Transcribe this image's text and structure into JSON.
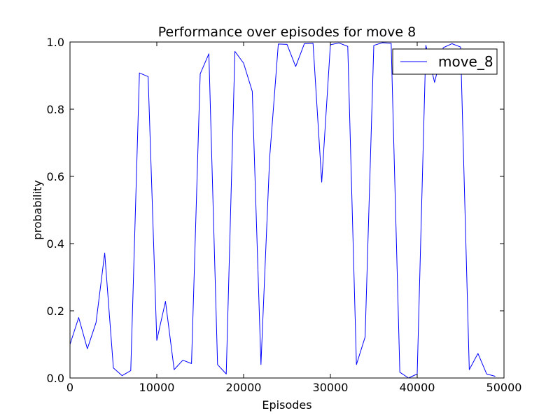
{
  "chart_data": {
    "type": "line",
    "title": "Performance over episodes for move 8",
    "xlabel": "Episodes",
    "ylabel": "probability",
    "xlim": [
      0,
      50000
    ],
    "ylim": [
      0.0,
      1.0
    ],
    "xticks": [
      0,
      10000,
      20000,
      30000,
      40000,
      50000
    ],
    "xtick_labels": [
      "0",
      "10000",
      "20000",
      "30000",
      "40000",
      "50000"
    ],
    "yticks": [
      0.0,
      0.2,
      0.4,
      0.6,
      0.8,
      1.0
    ],
    "ytick_labels": [
      "0.0",
      "0.2",
      "0.4",
      "0.6",
      "0.8",
      "1.0"
    ],
    "grid": false,
    "legend_position": "top-right",
    "series": [
      {
        "name": "move_8",
        "color": "#0000ff",
        "x": [
          0,
          1000,
          2000,
          3000,
          4000,
          5000,
          6000,
          7000,
          8000,
          9000,
          10000,
          11000,
          12000,
          13000,
          14000,
          15000,
          16000,
          17000,
          18000,
          19000,
          20000,
          21000,
          22000,
          23000,
          24000,
          25000,
          26000,
          27000,
          28000,
          29000,
          30000,
          31000,
          32000,
          33000,
          34000,
          35000,
          36000,
          37000,
          38000,
          39000,
          40000,
          41000,
          42000,
          43000,
          44000,
          45000,
          46000,
          47000,
          48000,
          49000
        ],
        "y": [
          0.1,
          0.18,
          0.087,
          0.165,
          0.372,
          0.03,
          0.007,
          0.022,
          0.908,
          0.897,
          0.112,
          0.228,
          0.025,
          0.053,
          0.043,
          0.905,
          0.965,
          0.04,
          0.012,
          0.972,
          0.937,
          0.853,
          0.04,
          0.655,
          0.994,
          0.993,
          0.927,
          0.995,
          0.996,
          0.583,
          0.992,
          0.997,
          0.987,
          0.04,
          0.122,
          0.99,
          0.998,
          0.996,
          0.017,
          0.0,
          0.012,
          0.99,
          0.88,
          0.983,
          0.995,
          0.985,
          0.025,
          0.073,
          0.012,
          0.005
        ]
      }
    ]
  }
}
